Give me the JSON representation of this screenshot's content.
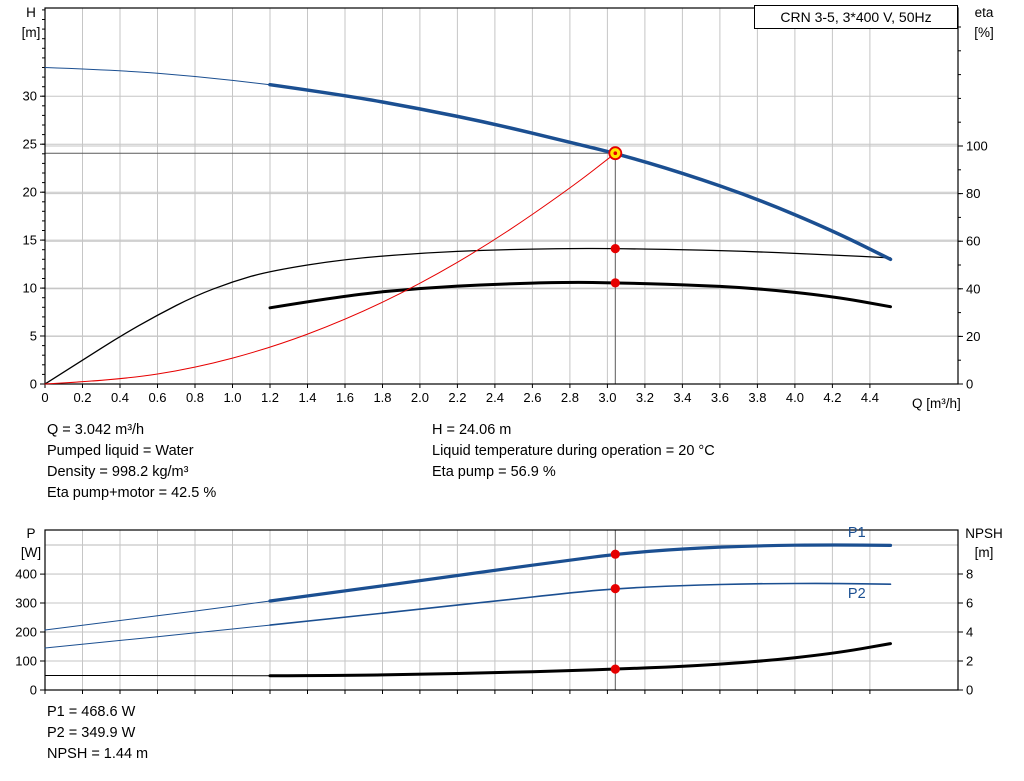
{
  "title_box": "CRN 3-5, 3*400 V, 50Hz",
  "colors": {
    "curve_blue": "#1b4f91",
    "curve_black": "#000000",
    "curve_red": "#e60000",
    "duty_yellow": "#ffe600",
    "grid": "#c6c6c6",
    "guide": "#5a5a5a",
    "text": "#000000"
  },
  "readouts": {
    "left": [
      "Q = 3.042 m³/h",
      "Pumped liquid = Water",
      "Density = 998.2 kg/m³",
      "Eta pump+motor = 42.5 %"
    ],
    "right": [
      "H = 24.06 m",
      "Liquid temperature during operation = 20 °C",
      "Eta pump = 56.9 %"
    ],
    "bottom": [
      "P1 = 468.6 W",
      "P2 = 349.9 W",
      "NPSH = 1.44 m"
    ]
  },
  "chart_data": [
    {
      "type": "line",
      "name": "qh-eta-chart",
      "x_axis": {
        "min": 0,
        "max": 4.87,
        "label": "Q [m³/h]",
        "show_tick_labels": true,
        "tick_labels": [
          "0",
          "0.2",
          "0.4",
          "0.6",
          "0.8",
          "1.0",
          "1.2",
          "1.4",
          "1.6",
          "1.8",
          "2.0",
          "2.2",
          "2.4",
          "2.6",
          "2.8",
          "3.0",
          "3.2",
          "3.4",
          "3.6",
          "3.8",
          "4.0",
          "4.2",
          "4.4"
        ]
      },
      "left_axis": {
        "title": "H",
        "unit": "[m]",
        "min": 0,
        "max": 39.2,
        "ticks": [
          0,
          5,
          10,
          15,
          20,
          25,
          30
        ],
        "minor_step": 1
      },
      "right_axis": {
        "title": "eta",
        "unit": "[%]",
        "min": 0,
        "max": 158,
        "ticks": [
          0,
          20,
          40,
          60,
          80,
          100
        ],
        "minor_step": 10
      },
      "series": [
        {
          "name": "eta-pump-curve",
          "axis": "right",
          "color": "curve_black",
          "width": 1.3,
          "thin_width": 1.3,
          "thin_until": 0,
          "points": [
            [
              0,
              0
            ],
            [
              0.2,
              10
            ],
            [
              0.4,
              20
            ],
            [
              0.6,
              29
            ],
            [
              0.8,
              37
            ],
            [
              1.0,
              43
            ],
            [
              1.2,
              47.5
            ],
            [
              1.6,
              52.5
            ],
            [
              2.0,
              55.0
            ],
            [
              2.4,
              56.4
            ],
            [
              2.8,
              57.0
            ],
            [
              3.042,
              56.9
            ],
            [
              3.4,
              56.5
            ],
            [
              3.8,
              55.6
            ],
            [
              4.2,
              54.2
            ],
            [
              4.51,
              53.0
            ]
          ]
        },
        {
          "name": "eta-pump-motor-curve",
          "axis": "right",
          "color": "curve_black",
          "width": 3,
          "thin_width": 3,
          "thin_until": 0,
          "points": [
            [
              1.2,
              32.0
            ],
            [
              1.6,
              37.2
            ],
            [
              2.0,
              40.3
            ],
            [
              2.4,
              42.0
            ],
            [
              2.8,
              42.8
            ],
            [
              3.042,
              42.5
            ],
            [
              3.4,
              41.8
            ],
            [
              3.8,
              40.2
            ],
            [
              4.2,
              36.8
            ],
            [
              4.51,
              32.5
            ]
          ]
        },
        {
          "name": "system-curve",
          "axis": "left",
          "color": "curve_red",
          "width": 1,
          "thin_width": 1,
          "thin_until": 99,
          "points": [
            [
              0,
              0
            ],
            [
              0.4,
              0.42
            ],
            [
              0.8,
              1.66
            ],
            [
              1.2,
              3.74
            ],
            [
              1.6,
              6.66
            ],
            [
              2.0,
              10.4
            ],
            [
              2.4,
              14.98
            ],
            [
              2.8,
              20.38
            ],
            [
              3.042,
              24.06
            ]
          ]
        },
        {
          "name": "qh-curve",
          "axis": "left",
          "color": "curve_blue",
          "width": 3.5,
          "thin_width": 1,
          "thin_until": 1.2,
          "points": [
            [
              0,
              33.0
            ],
            [
              0.4,
              32.7
            ],
            [
              0.8,
              32.1
            ],
            [
              1.2,
              31.2
            ],
            [
              1.6,
              30.1
            ],
            [
              2.0,
              28.7
            ],
            [
              2.4,
              27.1
            ],
            [
              2.8,
              25.2
            ],
            [
              3.042,
              24.06
            ],
            [
              3.4,
              22.0
            ],
            [
              3.8,
              19.3
            ],
            [
              4.2,
              16.0
            ],
            [
              4.51,
              13.0
            ]
          ]
        }
      ],
      "markers": [
        {
          "name": "eta-pump-dot",
          "axis": "right",
          "q": 3.042,
          "v": 56.9,
          "style": "dot"
        },
        {
          "name": "eta-pump-motor-dot",
          "axis": "right",
          "q": 3.042,
          "v": 42.5,
          "style": "dot"
        },
        {
          "name": "operating-point",
          "axis": "left",
          "q": 3.042,
          "v": 24.06,
          "style": "duty"
        }
      ],
      "guides": [
        {
          "type": "h",
          "axis": "left",
          "v": 24.06,
          "from": 0,
          "to": 3.042
        },
        {
          "type": "v",
          "q": 3.042,
          "axis": "left",
          "v_to": 24.06
        }
      ],
      "duty_point": {
        "q_m3h": 3.042,
        "h_m": 24.06,
        "eta_pump_pct": 56.9,
        "eta_pump_motor_pct": 42.5
      }
    },
    {
      "type": "line",
      "name": "power-npsh-chart",
      "x_axis": {
        "min": 0,
        "max": 4.87,
        "label": "",
        "show_tick_labels": false,
        "tick_labels": [
          "0",
          "0.2",
          "0.4",
          "0.6",
          "0.8",
          "1.0",
          "1.2",
          "1.4",
          "1.6",
          "1.8",
          "2.0",
          "2.2",
          "2.4",
          "2.6",
          "2.8",
          "3.0",
          "3.2",
          "3.4",
          "3.6",
          "3.8",
          "4.0",
          "4.2",
          "4.4"
        ]
      },
      "left_axis": {
        "title": "P",
        "unit": "[W]",
        "min": 0,
        "max": 552,
        "ticks": [
          0,
          100,
          200,
          300,
          400
        ],
        "grid_extra": [
          500
        ]
      },
      "right_axis": {
        "title": "NPSH",
        "unit": "[m]",
        "min": 0,
        "max": 11.03,
        "ticks": [
          0,
          2,
          4,
          6,
          8
        ],
        "grid_extra": [
          10
        ]
      },
      "series": [
        {
          "name": "p1-curve",
          "axis": "left",
          "color": "curve_blue",
          "width": 3.2,
          "thin_width": 1,
          "thin_until": 1.2,
          "end_label": {
            "text": "P1",
            "q": 4.33,
            "v": 527
          },
          "points": [
            [
              0,
              207
            ],
            [
              0.4,
              240
            ],
            [
              0.8,
              272
            ],
            [
              1.2,
              307
            ],
            [
              1.6,
              342
            ],
            [
              2.0,
              377
            ],
            [
              2.4,
              413
            ],
            [
              2.8,
              448
            ],
            [
              3.042,
              468.6
            ],
            [
              3.4,
              488
            ],
            [
              3.8,
              498
            ],
            [
              4.2,
              501
            ],
            [
              4.51,
              499
            ]
          ]
        },
        {
          "name": "p2-curve",
          "axis": "left",
          "color": "curve_blue",
          "width": 1.6,
          "thin_width": 1,
          "thin_until": 1.2,
          "end_label": {
            "text": "P2",
            "q": 4.33,
            "v": 317
          },
          "points": [
            [
              0,
              145
            ],
            [
              0.4,
              171
            ],
            [
              0.8,
              197
            ],
            [
              1.2,
              224
            ],
            [
              1.6,
              251
            ],
            [
              2.0,
              279
            ],
            [
              2.4,
              307
            ],
            [
              2.8,
              335
            ],
            [
              3.042,
              349.9
            ],
            [
              3.4,
              361
            ],
            [
              3.8,
              367
            ],
            [
              4.2,
              368
            ],
            [
              4.51,
              365
            ]
          ]
        },
        {
          "name": "npsh-curve",
          "axis": "right",
          "color": "curve_black",
          "width": 3,
          "thin_width": 1,
          "thin_until": 1.2,
          "points": [
            [
              0,
              1.0
            ],
            [
              0.6,
              1.0
            ],
            [
              1.2,
              0.98
            ],
            [
              1.6,
              1.0
            ],
            [
              2.0,
              1.08
            ],
            [
              2.4,
              1.2
            ],
            [
              2.8,
              1.33
            ],
            [
              3.042,
              1.44
            ],
            [
              3.4,
              1.62
            ],
            [
              3.8,
              1.95
            ],
            [
              4.2,
              2.5
            ],
            [
              4.51,
              3.2
            ]
          ]
        }
      ],
      "markers": [
        {
          "name": "p1-dot",
          "axis": "left",
          "q": 3.042,
          "v": 468.6,
          "style": "dot"
        },
        {
          "name": "p2-dot",
          "axis": "left",
          "q": 3.042,
          "v": 349.9,
          "style": "dot"
        },
        {
          "name": "npsh-dot",
          "axis": "right",
          "q": 3.042,
          "v": 1.44,
          "style": "dot"
        }
      ],
      "guides": [
        {
          "type": "v",
          "q": 3.042,
          "full": true
        }
      ],
      "duty_point": {
        "q_m3h": 3.042,
        "p1_w": 468.6,
        "p2_w": 349.9,
        "npsh_m": 1.44
      }
    }
  ]
}
